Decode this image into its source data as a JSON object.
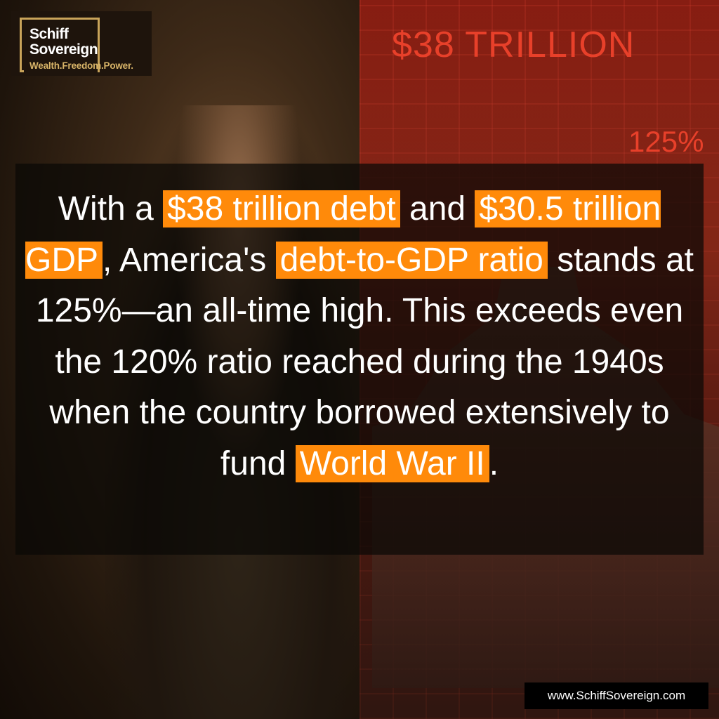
{
  "logo": {
    "line1": "Schiff",
    "line2": "Sovereign",
    "tagline": "Wealth.Freedom.Power.",
    "frame_color": "#c9a45a"
  },
  "background": {
    "headline": "$38 TRILLION",
    "percent": "125%"
  },
  "body_text": {
    "s1": "With a ",
    "h1": "$38 trillion debt",
    "s2": " and ",
    "h2": "$30.5 trillion GDP",
    "s3": ", America's ",
    "h3": "debt-to-GDP ratio",
    "s4": " stands at 125%—an all-time high. This exceeds even the 120% ratio reached during the 1940s when the country borrowed extensively to fund ",
    "h4": "World War II",
    "s5": "."
  },
  "footer": {
    "url": "www.SchiffSovereign.com"
  },
  "colors": {
    "highlight": "#ff8a0a",
    "accent_red": "#e8402a"
  }
}
